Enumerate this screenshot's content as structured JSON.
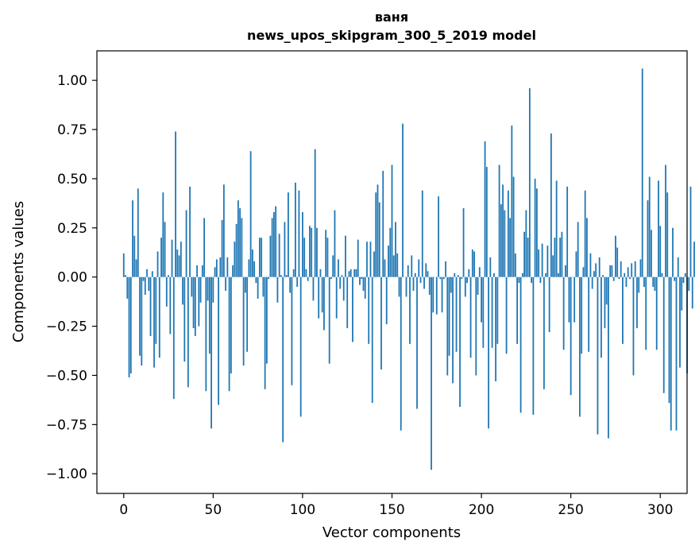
{
  "chart_data": {
    "type": "bar",
    "title": "ваня",
    "subtitle": "news_upos_skipgram_300_5_2019 model",
    "xlabel": "Vector components",
    "ylabel": "Components values",
    "xlim": [
      -15,
      315
    ],
    "ylim": [
      -1.1,
      1.15
    ],
    "xticks": [
      0,
      50,
      100,
      150,
      200,
      250,
      300
    ],
    "xtick_labels": [
      "0",
      "50",
      "100",
      "150",
      "200",
      "250",
      "300"
    ],
    "yticks": [
      1.0,
      0.75,
      0.5,
      0.25,
      0.0,
      -0.25,
      -0.5,
      -0.75,
      -1.0
    ],
    "ytick_labels": [
      "1.00",
      "0.75",
      "0.50",
      "0.25",
      "0.00",
      "−0.25",
      "−0.50",
      "−0.75",
      "−1.00"
    ],
    "bar_color": "#1f77b4",
    "grid": false,
    "values": [
      0.12,
      0.01,
      -0.11,
      -0.51,
      -0.49,
      0.39,
      0.21,
      0.09,
      0.45,
      -0.4,
      -0.45,
      -0.02,
      -0.09,
      0.04,
      -0.07,
      -0.3,
      0.03,
      -0.46,
      -0.34,
      0.13,
      -0.41,
      0.2,
      0.43,
      0.28,
      -0.15,
      0.01,
      -0.29,
      0.19,
      -0.62,
      0.74,
      0.14,
      0.11,
      0.18,
      -0.14,
      -0.43,
      0.34,
      -0.56,
      0.46,
      -0.1,
      -0.26,
      -0.3,
      0.06,
      -0.25,
      -0.13,
      0.06,
      0.3,
      -0.58,
      -0.12,
      -0.39,
      -0.77,
      -0.13,
      0.05,
      0.09,
      -0.65,
      0.1,
      0.29,
      0.47,
      -0.07,
      0.1,
      -0.58,
      -0.49,
      0.06,
      0.18,
      0.27,
      0.39,
      0.35,
      0.3,
      -0.45,
      -0.08,
      -0.38,
      0.09,
      0.64,
      0.14,
      0.08,
      -0.03,
      -0.11,
      0.2,
      0.2,
      -0.1,
      -0.57,
      -0.44,
      -0.01,
      0.21,
      0.3,
      0.33,
      0.36,
      -0.13,
      0.22,
      0.01,
      -0.84,
      0.28,
      0.01,
      0.43,
      -0.08,
      -0.55,
      0.04,
      0.48,
      -0.05,
      0.44,
      -0.71,
      0.33,
      0.2,
      0.04,
      -0.02,
      0.26,
      0.25,
      -0.12,
      0.65,
      0.25,
      -0.21,
      0.04,
      -0.18,
      -0.27,
      0.24,
      0.2,
      -0.44,
      -0.01,
      0.11,
      0.34,
      -0.21,
      0.09,
      -0.06,
      0.01,
      -0.12,
      0.21,
      -0.26,
      0.03,
      0.04,
      -0.33,
      0.04,
      0.04,
      0.19,
      -0.04,
      -0.01,
      -0.07,
      -0.11,
      0.18,
      -0.34,
      0.18,
      -0.64,
      0.13,
      0.43,
      0.47,
      0.38,
      -0.47,
      0.54,
      0.09,
      -0.24,
      0.16,
      0.25,
      0.57,
      0.11,
      0.28,
      0.12,
      -0.1,
      -0.78,
      0.78,
      0.0,
      -0.1,
      0.06,
      -0.34,
      0.11,
      -0.07,
      0.02,
      -0.67,
      0.09,
      -0.03,
      0.44,
      -0.06,
      0.07,
      0.03,
      -0.09,
      -0.98,
      -0.18,
      0.0,
      -0.19,
      0.41,
      -0.01,
      -0.18,
      -0.01,
      0.08,
      -0.5,
      -0.4,
      -0.08,
      -0.54,
      0.02,
      -0.38,
      0.01,
      -0.66,
      -0.01,
      0.35,
      -0.1,
      -0.03,
      0.04,
      -0.41,
      0.14,
      0.13,
      -0.5,
      -0.09,
      0.05,
      -0.23,
      -0.36,
      0.69,
      0.56,
      -0.77,
      0.1,
      -0.36,
      0.02,
      -0.53,
      -0.34,
      0.57,
      0.37,
      0.47,
      0.34,
      -0.39,
      0.44,
      0.3,
      0.77,
      0.51,
      0.12,
      -0.34,
      -0.03,
      -0.69,
      0.02,
      0.23,
      0.34,
      0.2,
      0.96,
      -0.03,
      -0.7,
      0.5,
      0.45,
      0.14,
      -0.03,
      0.17,
      -0.57,
      0.02,
      0.16,
      -0.28,
      0.73,
      0.11,
      0.2,
      0.49,
      0.02,
      0.2,
      0.23,
      -0.37,
      0.06,
      0.46,
      -0.23,
      -0.6,
      0.0,
      -0.23,
      0.13,
      0.28,
      -0.71,
      -0.39,
      0.05,
      0.44,
      0.3,
      -0.38,
      0.12,
      -0.06,
      0.03,
      0.07,
      -0.8,
      0.1,
      -0.41,
      0.01,
      -0.26,
      -0.14,
      -0.82,
      0.06,
      0.06,
      -0.02,
      0.21,
      0.15,
      -0.01,
      0.08,
      -0.34,
      0.02,
      -0.05,
      0.05,
      -0.01,
      0.07,
      -0.5,
      0.08,
      -0.26,
      -0.08,
      0.09,
      1.06,
      -0.05,
      -0.37,
      0.39,
      0.51,
      0.24,
      -0.05,
      -0.07,
      -0.37,
      0.49,
      0.26,
      0.02,
      -0.59,
      0.57,
      0.43,
      -0.64,
      -0.78,
      0.25,
      -0.02,
      -0.78,
      0.1,
      -0.46,
      -0.17,
      -0.03,
      0.02,
      -0.49,
      -0.07,
      0.46,
      -0.16,
      0.18
    ]
  }
}
